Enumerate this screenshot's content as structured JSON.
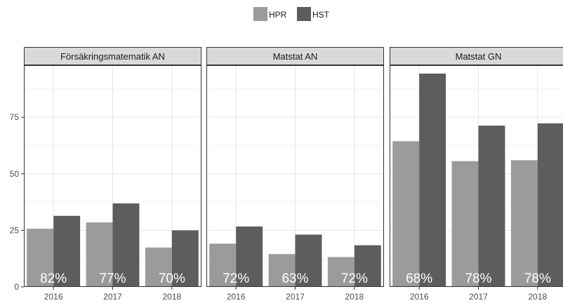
{
  "chart_data": {
    "type": "bar",
    "layout": "faceted-grouped-bar",
    "legend": {
      "position": "top",
      "entries": [
        "HPR",
        "HST"
      ]
    },
    "colors": {
      "HPR": "#9b9b9b",
      "HST": "#5d5d5d"
    },
    "grid": true,
    "ylim": [
      0,
      98
    ],
    "yticks": [
      "0",
      "25",
      "50",
      "75"
    ],
    "ytick_values": [
      0,
      25,
      50,
      75
    ],
    "categories": [
      "2016",
      "2017",
      "2018"
    ],
    "panels": [
      {
        "title": "Försäkringsmatematik AN",
        "series": [
          {
            "name": "HPR",
            "values": [
              25.7,
              28.5,
              17.4
            ]
          },
          {
            "name": "HST",
            "values": [
              31.4,
              36.9,
              25.0
            ]
          }
        ],
        "labels": [
          "82%",
          "77%",
          "70%"
        ]
      },
      {
        "title": "Matstat AN",
        "series": [
          {
            "name": "HPR",
            "values": [
              19.1,
              14.5,
              13.2
            ]
          },
          {
            "name": "HST",
            "values": [
              26.7,
              23.1,
              18.4
            ]
          }
        ],
        "labels": [
          "72%",
          "63%",
          "72%"
        ]
      },
      {
        "title": "Matstat GN",
        "series": [
          {
            "name": "HPR",
            "values": [
              64.4,
              55.6,
              56.0
            ]
          },
          {
            "name": "HST",
            "values": [
              94.3,
              71.3,
              72.3
            ]
          }
        ],
        "labels": [
          "68%",
          "78%",
          "78%"
        ]
      }
    ]
  }
}
